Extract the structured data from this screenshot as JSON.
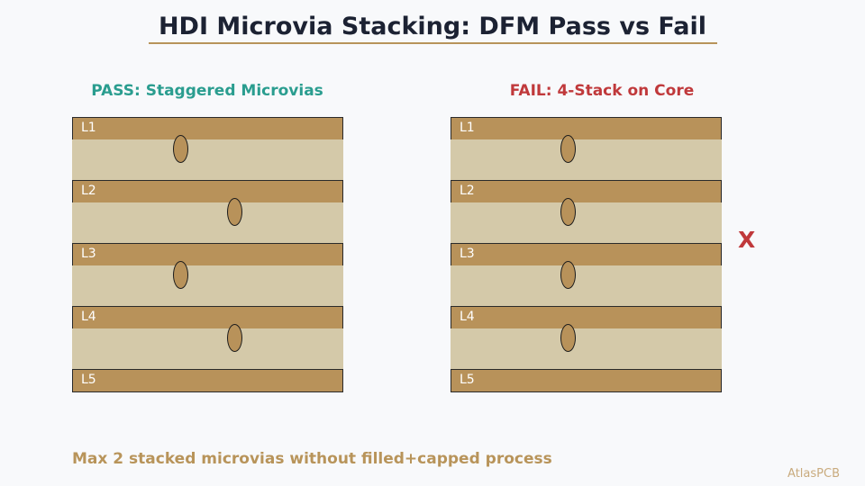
{
  "title": "HDI Microvia Stacking: DFM Pass vs Fail",
  "pass_panel": {
    "heading": "PASS: Staggered Microvias",
    "layers": [
      "L1",
      "L2",
      "L3",
      "L4",
      "L5"
    ],
    "via_offsets": [
      "center",
      "right",
      "center",
      "right"
    ]
  },
  "fail_panel": {
    "heading": "FAIL: 4-Stack on Core",
    "layers": [
      "L1",
      "L2",
      "L3",
      "L4",
      "L5"
    ],
    "via_offsets": [
      "center",
      "center",
      "center",
      "center"
    ],
    "mark": "X"
  },
  "footnote": "Max 2 stacked microvias without filled+capped process",
  "brand": "AtlasPCB",
  "colors": {
    "copper": "#b8925a",
    "dielectric": "#d4c9a9",
    "pass": "#2a9d8f",
    "fail": "#c0393b",
    "accent": "#b8945a"
  }
}
